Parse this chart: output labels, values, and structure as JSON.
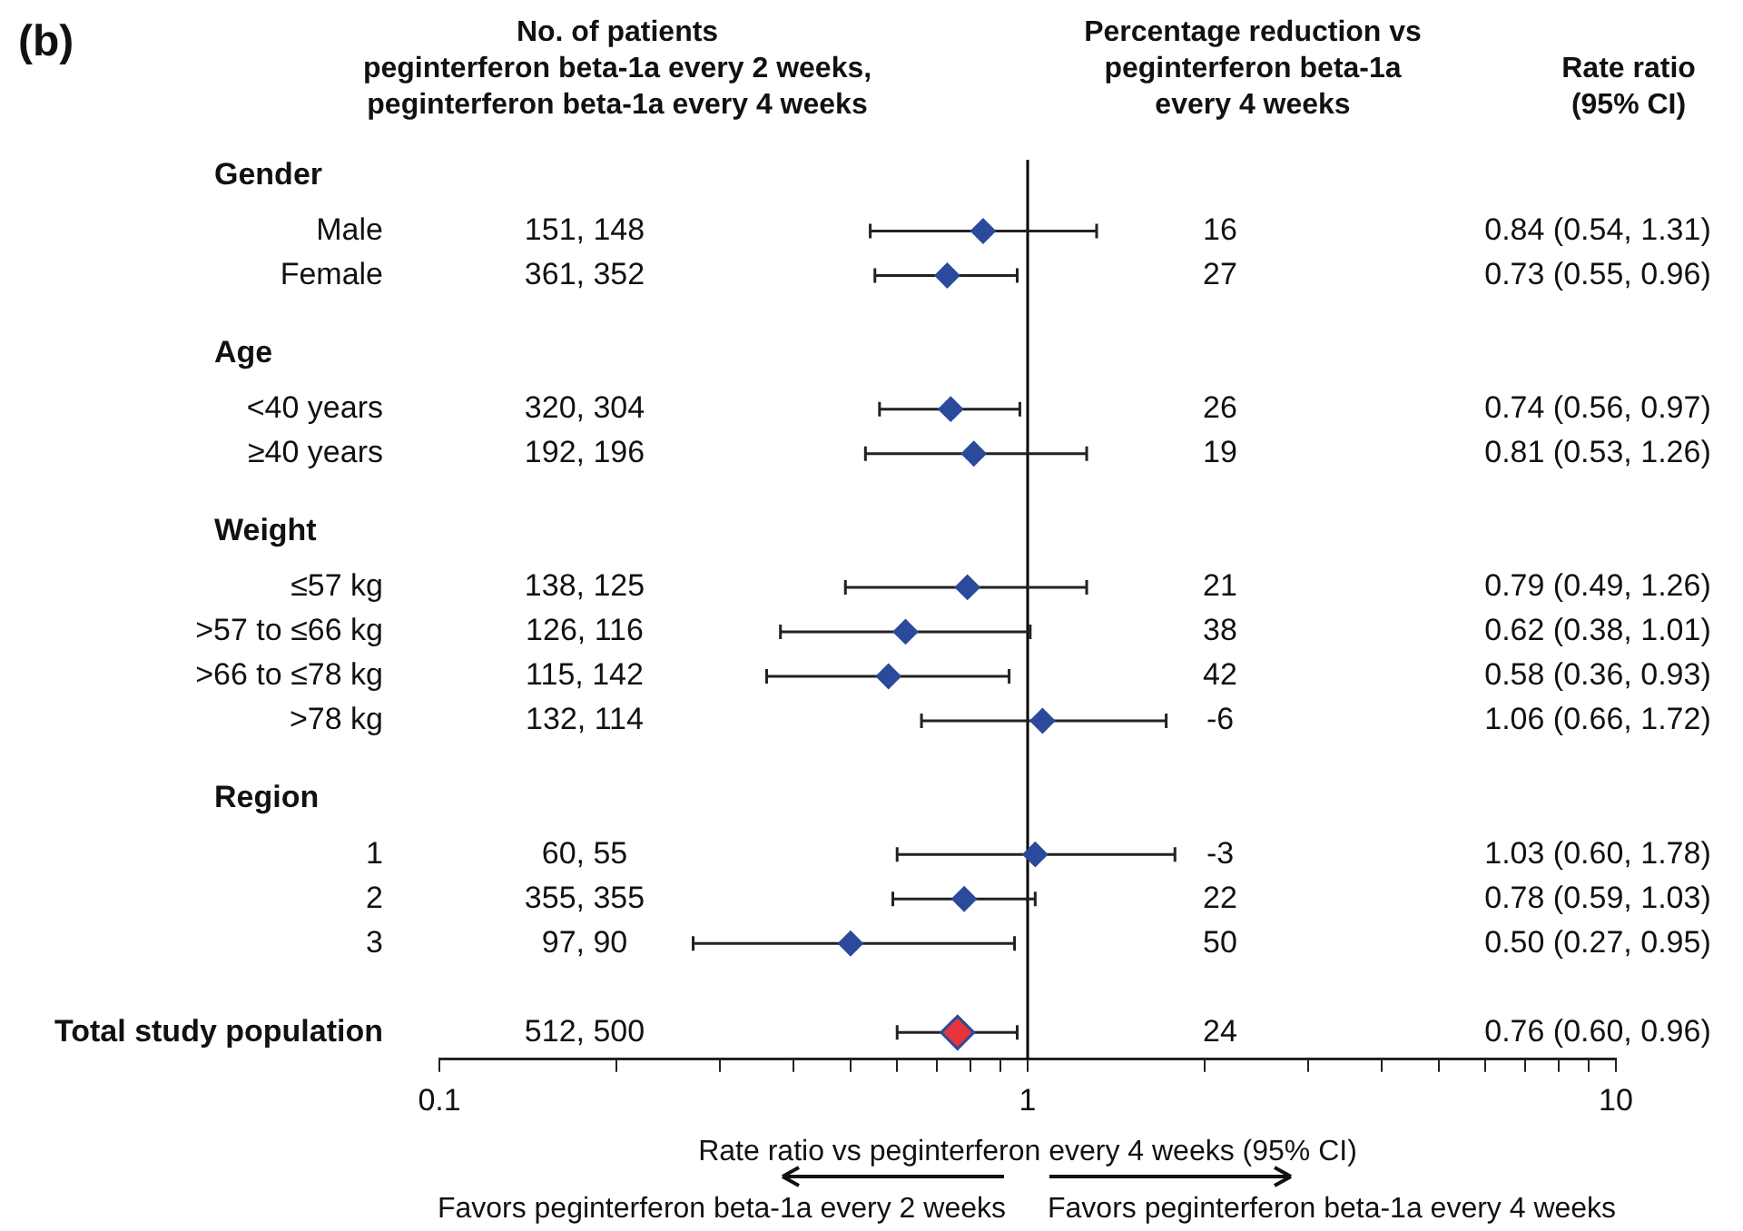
{
  "chart_data": {
    "type": "scatter",
    "orientation": "horizontal",
    "title": "(b)",
    "xlabel": "Rate ratio vs peginterferon every 4 weeks (95% CI)",
    "categories": [
      null,
      "Male",
      "Female",
      null,
      null,
      "<40 years",
      "≥40 years",
      null,
      null,
      "≤57 kg",
      ">57 to ≤66 kg",
      ">66 to ≤78 kg",
      ">78 kg",
      null,
      null,
      "1",
      "2",
      "3",
      null,
      "Total study population"
    ],
    "series": [
      {
        "color": "#2c4a9b",
        "values": [
          null,
          0.84,
          0.73,
          null,
          null,
          0.74,
          0.81,
          null,
          null,
          0.79,
          0.62,
          0.58,
          1.06,
          null,
          null,
          1.03,
          0.78,
          0.5,
          null,
          null
        ],
        "errors": [
          null,
          [
            0.54,
            1.31
          ],
          [
            0.55,
            0.96
          ],
          null,
          null,
          [
            0.56,
            0.97
          ],
          [
            0.53,
            1.26
          ],
          null,
          null,
          [
            0.49,
            1.26
          ],
          [
            0.38,
            1.01
          ],
          [
            0.36,
            0.93
          ],
          [
            0.66,
            1.72
          ],
          null,
          null,
          [
            0.6,
            1.78
          ],
          [
            0.59,
            1.03
          ],
          [
            0.27,
            0.95
          ],
          null,
          null
        ]
      },
      {
        "color": "#e8333a",
        "values": [
          null,
          null,
          null,
          null,
          null,
          null,
          null,
          null,
          null,
          null,
          null,
          null,
          null,
          null,
          null,
          null,
          null,
          null,
          null,
          0.76
        ],
        "errors": [
          null,
          null,
          null,
          null,
          null,
          null,
          null,
          null,
          null,
          null,
          null,
          null,
          null,
          null,
          null,
          null,
          null,
          null,
          null,
          [
            0.6,
            0.96
          ]
        ]
      }
    ],
    "xlim": [
      0.1,
      10
    ],
    "xticks": [
      0.1,
      {
        "value": 0.2,
        "label": null
      },
      {
        "value": 0.3,
        "label": null
      },
      {
        "value": 0.4,
        "label": null
      },
      {
        "value": 0.5,
        "label": null
      },
      {
        "value": 0.6,
        "label": null
      },
      {
        "value": 0.7,
        "label": null
      },
      {
        "value": 0.8,
        "label": null
      },
      {
        "value": 0.9,
        "label": null
      },
      1,
      {
        "value": 2,
        "label": null
      },
      {
        "value": 3,
        "label": null
      },
      {
        "value": 4,
        "label": null
      },
      {
        "value": 5,
        "label": null
      },
      {
        "value": 6,
        "label": null
      },
      {
        "value": 7,
        "label": null
      },
      {
        "value": 8,
        "label": null
      },
      {
        "value": 9,
        "label": null
      },
      10
    ],
    "log": "x",
    "grid": false,
    "legend": false,
    "marker": "diamond",
    "ref_lines": [
      {
        "axis": "x",
        "value": 1,
        "color": "#000000"
      }
    ],
    "annotations": [
      "No. of patients\npeginterferon beta-1a every 2 weeks,\npeginterferon beta-1a every 4 weeks",
      "Percentage reduction vs\npeginterferon beta-1a\nevery 4 weeks",
      "Rate ratio\n(95% CI)",
      "Favors peginterferon beta-1a every 2 weeks",
      "Favors peginterferon beta-1a every 4 weeks",
      "Gender",
      "Age",
      "Weight",
      "Region",
      "151, 148",
      "16",
      "0.84 (0.54, 1.31)",
      "361, 352",
      "27",
      "0.73 (0.55, 0.96)",
      "320, 304",
      "26",
      "0.74 (0.56, 0.97)",
      "192, 196",
      "19",
      "0.81 (0.53, 1.26)",
      "138, 125",
      "21",
      "0.79 (0.49, 1.26)",
      "126, 116",
      "38",
      "0.62 (0.38, 1.01)",
      "115, 142",
      "42",
      "0.58 (0.36, 0.93)",
      "132, 114",
      "-6",
      "1.06 (0.66, 1.72)",
      "60, 55",
      "-3",
      "1.03 (0.60, 1.78)",
      "355, 355",
      "22",
      "0.78 (0.59, 1.03)",
      "97, 90",
      "50",
      "0.50 (0.27, 0.95)",
      "512, 500",
      "24",
      "0.76 (0.60, 0.96)"
    ]
  }
}
